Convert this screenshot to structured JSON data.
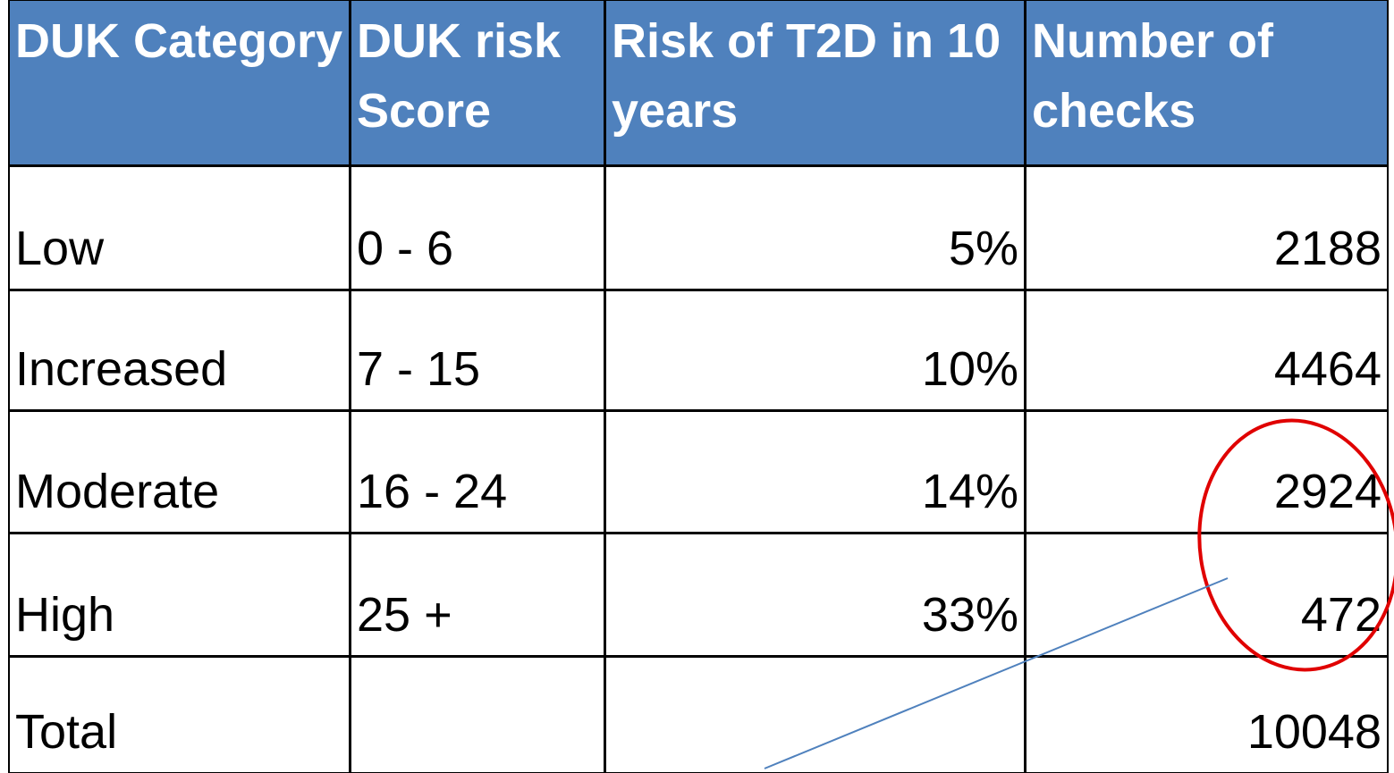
{
  "table": {
    "header": [
      "DUK Category",
      "DUK risk Score",
      "Risk of T2D in 10 years",
      "Number of checks"
    ],
    "rows": [
      [
        "Low",
        "0 - 6",
        "5%",
        "2188"
      ],
      [
        "Increased",
        "7 - 15",
        "10%",
        "4464"
      ],
      [
        "Moderate",
        "16 - 24",
        "14%",
        "2924"
      ],
      [
        "High",
        "25 +",
        "33%",
        "472"
      ],
      [
        "Total",
        "",
        "",
        "10048"
      ]
    ]
  }
}
